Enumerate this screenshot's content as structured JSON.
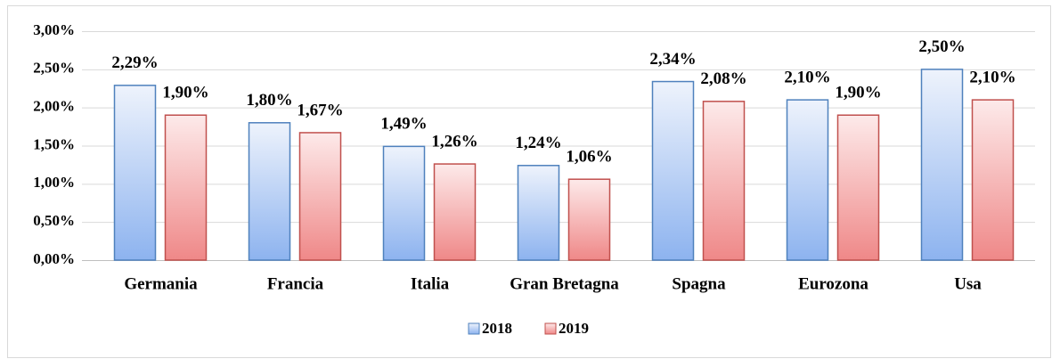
{
  "chart_data": {
    "type": "bar",
    "categories": [
      "Germania",
      "Francia",
      "Italia",
      "Gran Bretagna",
      "Spagna",
      "Eurozona",
      "Usa"
    ],
    "series": [
      {
        "name": "2018",
        "color": "#4f81bd",
        "values": [
          2.29,
          1.8,
          1.49,
          1.24,
          2.34,
          2.1,
          2.5
        ],
        "value_labels": [
          "2,29%",
          "1,80%",
          "1,49%",
          "1,24%",
          "2,34%",
          "2,10%",
          "2,50%"
        ]
      },
      {
        "name": "2019",
        "color": "#c0504d",
        "values": [
          1.9,
          1.67,
          1.26,
          1.06,
          2.08,
          1.9,
          2.1
        ],
        "value_labels": [
          "1,90%",
          "1,67%",
          "1,26%",
          "1,06%",
          "2,08%",
          "1,90%",
          "2,10%"
        ]
      }
    ],
    "ylim": [
      0,
      3
    ],
    "yticks": [
      {
        "value": 0,
        "label": "0,00%"
      },
      {
        "value": 0.5,
        "label": "0,50%"
      },
      {
        "value": 1,
        "label": "1,00%"
      },
      {
        "value": 1.5,
        "label": "1,50%"
      },
      {
        "value": 2,
        "label": "2,00%"
      },
      {
        "value": 2.5,
        "label": "2,50%"
      },
      {
        "value": 3,
        "label": "3,00%"
      }
    ],
    "grid": true,
    "legend": "bottom"
  }
}
